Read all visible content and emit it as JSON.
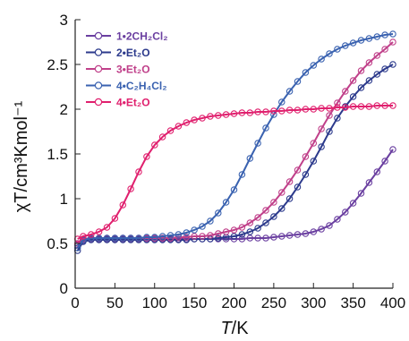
{
  "chart_data": {
    "type": "scatter",
    "title": "",
    "xlabel": {
      "italic": "T",
      "rest": "/K"
    },
    "ylabel": "χT/cm³Kmol⁻¹",
    "xlim": [
      0,
      400
    ],
    "ylim": [
      0,
      3
    ],
    "xticks": [
      0,
      50,
      100,
      150,
      200,
      250,
      300,
      350,
      400
    ],
    "yticks": [
      0,
      0.5,
      1,
      1.5,
      2,
      2.5,
      3
    ],
    "ytick_labels": [
      "0",
      "0.5",
      "1",
      "1.5",
      "2",
      "2.5",
      "3"
    ],
    "grid": false,
    "legend_position": "top-left",
    "series": [
      {
        "name": "1•2CH₂Cl₂",
        "color": "#6a3fa0",
        "marker": "open-circle",
        "x": [
          3,
          10,
          20,
          30,
          40,
          50,
          60,
          70,
          80,
          90,
          100,
          110,
          120,
          130,
          140,
          150,
          160,
          170,
          180,
          190,
          200,
          210,
          220,
          230,
          240,
          250,
          260,
          270,
          280,
          290,
          300,
          310,
          320,
          330,
          340,
          350,
          360,
          370,
          380,
          390,
          400
        ],
        "y": [
          0.48,
          0.53,
          0.55,
          0.55,
          0.55,
          0.55,
          0.55,
          0.55,
          0.55,
          0.55,
          0.55,
          0.55,
          0.55,
          0.55,
          0.55,
          0.55,
          0.55,
          0.55,
          0.55,
          0.55,
          0.55,
          0.55,
          0.56,
          0.56,
          0.56,
          0.57,
          0.58,
          0.59,
          0.6,
          0.61,
          0.63,
          0.66,
          0.7,
          0.77,
          0.85,
          0.95,
          1.06,
          1.18,
          1.3,
          1.42,
          1.55
        ]
      },
      {
        "name": "2•Et₂O",
        "color": "#2c3a8c",
        "marker": "open-circle",
        "x": [
          3,
          10,
          20,
          30,
          40,
          50,
          60,
          70,
          80,
          90,
          100,
          110,
          120,
          130,
          140,
          150,
          160,
          170,
          180,
          190,
          200,
          210,
          220,
          230,
          240,
          250,
          260,
          270,
          280,
          290,
          300,
          310,
          320,
          330,
          340,
          350,
          360,
          370,
          380,
          390,
          400
        ],
        "y": [
          0.42,
          0.52,
          0.54,
          0.54,
          0.54,
          0.54,
          0.54,
          0.54,
          0.54,
          0.54,
          0.54,
          0.54,
          0.54,
          0.54,
          0.54,
          0.55,
          0.55,
          0.55,
          0.56,
          0.57,
          0.58,
          0.6,
          0.63,
          0.67,
          0.73,
          0.8,
          0.89,
          1.0,
          1.13,
          1.27,
          1.42,
          1.58,
          1.75,
          1.9,
          2.03,
          2.14,
          2.24,
          2.32,
          2.39,
          2.45,
          2.5
        ]
      },
      {
        "name": "3•Et₂O",
        "color": "#c0408a",
        "marker": "open-circle",
        "x": [
          3,
          10,
          20,
          30,
          40,
          50,
          60,
          70,
          80,
          90,
          100,
          110,
          120,
          130,
          140,
          150,
          160,
          170,
          180,
          190,
          200,
          210,
          220,
          230,
          240,
          250,
          260,
          270,
          280,
          290,
          300,
          310,
          320,
          330,
          340,
          350,
          360,
          370,
          380,
          390,
          400
        ],
        "y": [
          0.5,
          0.55,
          0.56,
          0.56,
          0.56,
          0.56,
          0.56,
          0.56,
          0.56,
          0.56,
          0.56,
          0.56,
          0.56,
          0.57,
          0.57,
          0.58,
          0.58,
          0.59,
          0.61,
          0.63,
          0.65,
          0.68,
          0.73,
          0.79,
          0.87,
          0.96,
          1.07,
          1.19,
          1.32,
          1.47,
          1.62,
          1.78,
          1.93,
          2.07,
          2.2,
          2.32,
          2.43,
          2.52,
          2.6,
          2.67,
          2.75
        ]
      },
      {
        "name": "4•C₂H₄Cl₂",
        "color": "#3a62b0",
        "marker": "open-circle",
        "x": [
          3,
          10,
          20,
          30,
          40,
          50,
          60,
          70,
          80,
          90,
          100,
          110,
          120,
          130,
          140,
          150,
          160,
          170,
          180,
          190,
          200,
          210,
          220,
          230,
          240,
          250,
          260,
          270,
          280,
          290,
          300,
          310,
          320,
          330,
          340,
          350,
          360,
          370,
          380,
          390,
          400
        ],
        "y": [
          0.45,
          0.54,
          0.56,
          0.56,
          0.56,
          0.56,
          0.56,
          0.56,
          0.56,
          0.57,
          0.57,
          0.58,
          0.59,
          0.6,
          0.62,
          0.65,
          0.69,
          0.75,
          0.84,
          0.96,
          1.1,
          1.27,
          1.45,
          1.62,
          1.79,
          1.94,
          2.08,
          2.2,
          2.31,
          2.41,
          2.49,
          2.56,
          2.62,
          2.67,
          2.71,
          2.74,
          2.77,
          2.79,
          2.81,
          2.83,
          2.84
        ]
      },
      {
        "name": "4•Et₂O",
        "color": "#e0206e",
        "marker": "open-circle",
        "x": [
          3,
          10,
          20,
          30,
          40,
          50,
          60,
          70,
          80,
          90,
          100,
          110,
          120,
          130,
          140,
          150,
          160,
          170,
          180,
          190,
          200,
          210,
          220,
          230,
          240,
          250,
          260,
          270,
          280,
          290,
          300,
          310,
          320,
          330,
          340,
          350,
          360,
          370,
          380,
          390,
          400
        ],
        "y": [
          0.55,
          0.58,
          0.6,
          0.63,
          0.68,
          0.78,
          0.93,
          1.11,
          1.3,
          1.47,
          1.6,
          1.69,
          1.76,
          1.81,
          1.85,
          1.88,
          1.9,
          1.92,
          1.93,
          1.94,
          1.95,
          1.96,
          1.96,
          1.97,
          1.97,
          1.98,
          1.98,
          1.99,
          1.99,
          2.0,
          2.0,
          2.01,
          2.01,
          2.02,
          2.02,
          2.03,
          2.03,
          2.03,
          2.04,
          2.04,
          2.04
        ]
      }
    ]
  }
}
